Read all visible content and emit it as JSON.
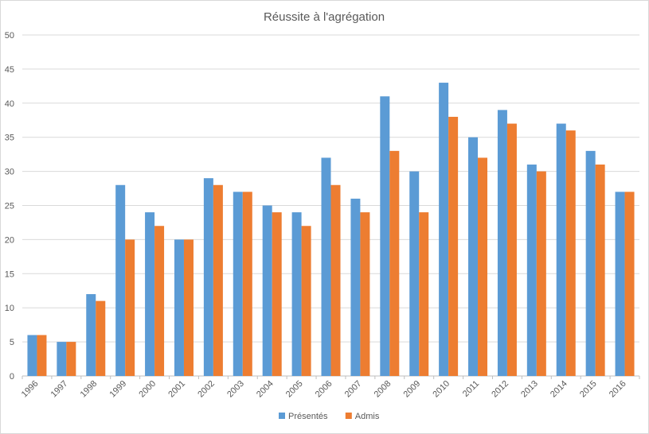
{
  "chart_data": {
    "type": "bar",
    "title": "Réussite à l'agrégation",
    "xlabel": "",
    "ylabel": "",
    "ylim": [
      0,
      50
    ],
    "ytick_step": 5,
    "grid": true,
    "legend_position": "bottom",
    "categories": [
      "1996",
      "1997",
      "1998",
      "1999",
      "2000",
      "2001",
      "2002",
      "2003",
      "2004",
      "2005",
      "2006",
      "2007",
      "2008",
      "2009",
      "2010",
      "2011",
      "2012",
      "2013",
      "2014",
      "2015",
      "2016"
    ],
    "series": [
      {
        "name": "Présentés",
        "color": "#5b9bd5",
        "values": [
          6,
          5,
          12,
          28,
          24,
          20,
          29,
          27,
          25,
          24,
          32,
          26,
          41,
          30,
          43,
          35,
          39,
          31,
          37,
          33,
          27
        ]
      },
      {
        "name": "Admis",
        "color": "#ed7d31",
        "values": [
          6,
          5,
          11,
          20,
          22,
          20,
          28,
          27,
          24,
          22,
          28,
          24,
          33,
          24,
          38,
          32,
          37,
          30,
          36,
          31,
          27
        ]
      }
    ]
  }
}
